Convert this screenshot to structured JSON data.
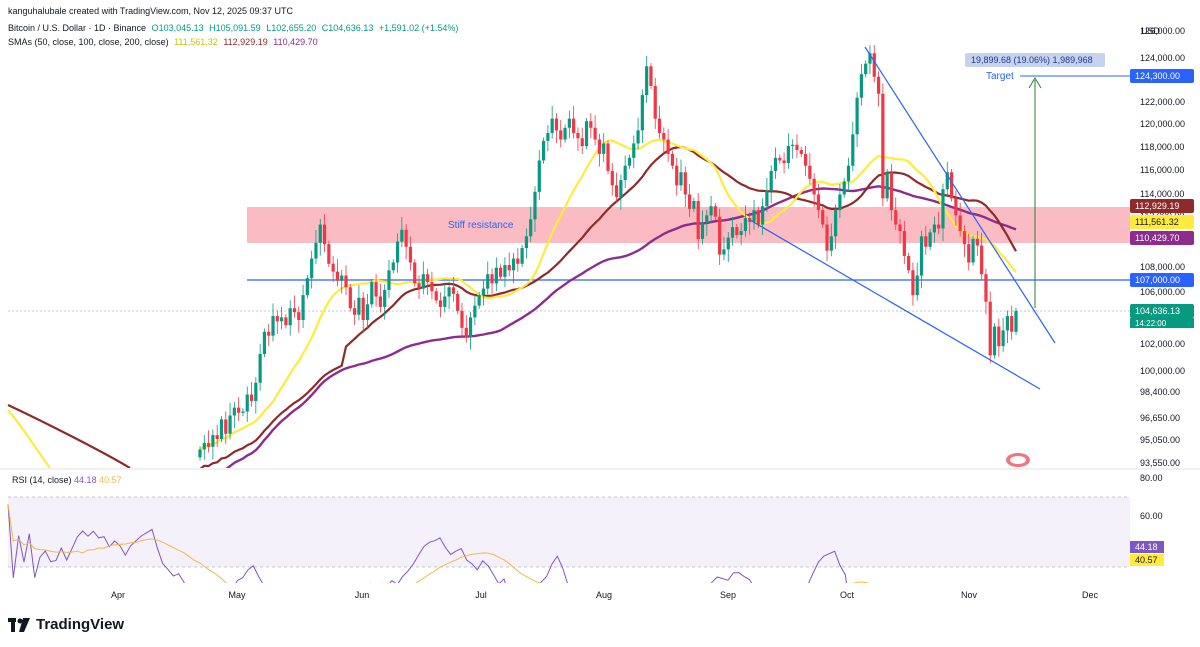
{
  "header": {
    "author_line": "kanguhalubale created with TradingView.com, Nov 12, 2025 09:37 UTC",
    "symbol": "Bitcoin / U.S. Dollar · 1D · Binance",
    "o": "O103,045.13",
    "h": "H105,091.59",
    "l": "L102,655.20",
    "c": "C104,636.13",
    "chg": "+1,591.02 (+1.54%)",
    "sma_label": "SMAs (50, close, 100, close, 200, close)",
    "sma50": "111,561.32",
    "sma100": "112,929.19",
    "sma200": "110,429.70"
  },
  "currency": "USD",
  "rsi": {
    "label": "RSI (14, close)",
    "value": "44.18",
    "ma_value": "40.57"
  },
  "brand": "TradingView",
  "colors": {
    "up": "#089981",
    "down": "#f23645",
    "sma50": "#ffeb3b",
    "sma100": "#8d2b2b",
    "sma200": "#8e2c8e",
    "trend": "#2962ff",
    "zone": "#f7a4ab",
    "rsi": "#7e57c2",
    "rsi_ma": "#f0b94a",
    "target": "#2e7d32"
  },
  "chart_data": {
    "type": "candlestick",
    "price_axis": [
      "126,000.00",
      "124,000.00",
      "122,000.00",
      "120,000.00",
      "118,000.00",
      "116,000.00",
      "114,000.00",
      "112,000.00",
      "110,000.00",
      "108,000.00",
      "106,000.00",
      "104,000.00",
      "102,000.00",
      "100,000.00",
      "98,400.00",
      "96,650.00",
      "95,050.00",
      "93,550.00"
    ],
    "time_axis": [
      "Apr",
      "May",
      "Jun",
      "Jul",
      "Aug",
      "Sep",
      "Oct",
      "Nov",
      "Dec"
    ],
    "rsi_axis": [
      "80.00",
      "60.00"
    ],
    "price_badges": {
      "target": "124,300.00",
      "sma100": "112,929.19",
      "sma50": "111,561.32",
      "sma200": "110,429.70",
      "support": "107,000.00",
      "last": "104,636.13",
      "countdown": "14:22:00",
      "rsi": "44.18",
      "rsi_ma": "40.57"
    },
    "annotations": {
      "zone_label": "Stiff resistance",
      "target_label": "Target",
      "measure": "19,899.68 (19.06%) 1,989,968"
    },
    "candles_closes": [
      94000,
      94500,
      94200,
      95100,
      94800,
      96300,
      95200,
      96600,
      97200,
      96800,
      96900,
      98200,
      97700,
      99100,
      101300,
      103000,
      102700,
      104200,
      103800,
      104100,
      103500,
      104800,
      104500,
      103900,
      105800,
      107100,
      108600,
      109800,
      111200,
      109700,
      108200,
      107600,
      106900,
      107300,
      106400,
      104800,
      104300,
      105600,
      103900,
      105100,
      106800,
      105700,
      104900,
      106200,
      107700,
      108300,
      109900,
      110800,
      109500,
      108300,
      106700,
      106300,
      107400,
      106800,
      106100,
      105400,
      104900,
      105700,
      106400,
      105900,
      104600,
      103300,
      102600,
      104100,
      105000,
      105800,
      106300,
      107400,
      106700,
      107900,
      107200,
      108100,
      107700,
      108600,
      108200,
      109400,
      110300,
      111600,
      113700,
      116100,
      117600,
      118200,
      119300,
      118400,
      117700,
      118600,
      119300,
      118200,
      117800,
      117200,
      119100,
      118600,
      117700,
      116600,
      117400,
      115300,
      114200,
      113300,
      114600,
      115700,
      116300,
      117400,
      118400,
      121100,
      123300,
      121800,
      119300,
      118200,
      117700,
      116600,
      115700,
      114200,
      115200,
      113500,
      112400,
      113000,
      110100,
      111300,
      111900,
      112600,
      111800,
      108900,
      109300,
      110200,
      111000,
      110400,
      110700,
      111700,
      111400,
      112300,
      111200,
      112600,
      113800,
      115300,
      116300,
      116100,
      115900,
      117200,
      117300,
      116900,
      116600,
      115700,
      114700,
      113500,
      112300,
      111200,
      109200,
      110300,
      112300,
      113500,
      114500,
      115700,
      118100,
      120900,
      122700,
      123500,
      124300,
      122500,
      121200,
      113200,
      115200,
      112300,
      111200,
      110700,
      108800,
      107700,
      105800,
      107300,
      110300,
      109500,
      110600,
      111200,
      110900,
      113900,
      115200,
      113200,
      111900,
      110700,
      109700,
      108300,
      110100,
      109600,
      107400,
      105300,
      101200,
      103400,
      101900,
      103100,
      104200,
      103000,
      104600
    ]
  }
}
